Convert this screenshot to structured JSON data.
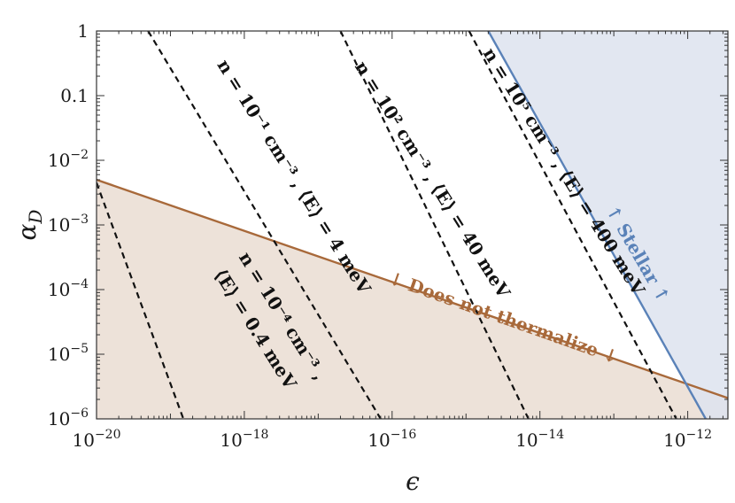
{
  "chart_data": {
    "type": "line",
    "xlabel": "ϵ",
    "ylabel": "α_D",
    "xscale": "log",
    "yscale": "log",
    "xlim": [
      1e-20,
      3.5e-12
    ],
    "ylim": [
      1e-06,
      1
    ],
    "grid": false,
    "x_ticks": [
      {
        "value": 1e-20,
        "label": "10⁻²⁰"
      },
      {
        "value": 1e-18,
        "label": "10⁻¹⁸"
      },
      {
        "value": 1e-16,
        "label": "10⁻¹⁶"
      },
      {
        "value": 1e-14,
        "label": "10⁻¹⁴"
      },
      {
        "value": 1e-12,
        "label": "10⁻¹²"
      }
    ],
    "y_ticks": [
      {
        "value": 1e-06,
        "label": "10⁻⁶"
      },
      {
        "value": 1e-05,
        "label": "10⁻⁵"
      },
      {
        "value": 0.0001,
        "label": "10⁻⁴"
      },
      {
        "value": 0.001,
        "label": "10⁻³"
      },
      {
        "value": 0.01,
        "label": "10⁻²"
      },
      {
        "value": 0.1,
        "label": "0.1"
      },
      {
        "value": 1,
        "label": "1"
      }
    ],
    "regions": [
      {
        "name": "thermalize",
        "label": "↓ Does not thermalize ↓",
        "color": "#a8693a",
        "fill": "#eaddd2",
        "boundary": [
          [
            1e-20,
            0.005
          ],
          [
            3.5e-12,
            2.1e-06
          ]
        ],
        "shade": "below"
      },
      {
        "name": "stellar",
        "label": "↑ Stellar ↑",
        "color": "#5a82b8",
        "fill": "#dde3ef",
        "boundary": [
          [
            2e-15,
            1
          ],
          [
            1.75e-12,
            1e-06
          ]
        ],
        "shade": "right"
      }
    ],
    "series": [
      {
        "name": "n = 10⁻⁴ cm⁻³ , ⟨E⟩ = 0.4 meV",
        "color": "#111111",
        "dash": true,
        "points": [
          [
            1e-20,
            0.0045
          ],
          [
            1.5e-19,
            1e-06
          ]
        ]
      },
      {
        "name": "n = 10⁻¹ cm⁻³ , ⟨E⟩ = 4 meV",
        "color": "#111111",
        "dash": true,
        "points": [
          [
            5e-20,
            1
          ],
          [
            7e-17,
            1e-06
          ]
        ]
      },
      {
        "name": "n = 10² cm⁻³ , ⟨E⟩ = 40 meV",
        "color": "#111111",
        "dash": true,
        "points": [
          [
            2e-17,
            1
          ],
          [
            7e-15,
            1e-06
          ]
        ]
      },
      {
        "name": "n = 10⁵ cm⁻³ , ⟨E⟩ = 400 meV",
        "color": "#111111",
        "dash": true,
        "points": [
          [
            1.1e-15,
            1
          ],
          [
            7e-13,
            1e-06
          ]
        ]
      }
    ],
    "annotations": [
      {
        "text": "n = 10⁻⁴ cm⁻³ ,",
        "color": "#111111",
        "x": 2.8e-18,
        "y": 3.5e-05,
        "angle": 58
      },
      {
        "text": "⟨E⟩ = 0.4 meV",
        "color": "#111111",
        "x": 1.2e-18,
        "y": 2.2e-05,
        "angle": 58
      },
      {
        "text": "n = 10⁻¹ cm⁻³ , ⟨E⟩ = 4 meV",
        "color": "#111111",
        "x": 4e-18,
        "y": 0.005,
        "angle": 58
      },
      {
        "text": "n = 10² cm⁻³ , ⟨E⟩ = 40 meV",
        "color": "#111111",
        "x": 3e-16,
        "y": 0.0045,
        "angle": 58
      },
      {
        "text": "n = 10⁵ cm⁻³ , ⟨E⟩ = 400 meV",
        "color": "#111111",
        "x": 1.8e-14,
        "y": 0.006,
        "angle": 58
      },
      {
        "text": "↓ Does not thermalize ↓",
        "color": "#a8693a",
        "x": 3e-15,
        "y": 3e-05,
        "angle": 19.5
      },
      {
        "text": "↑ Stellar ↑",
        "color": "#5a82b8",
        "x": 1.8e-13,
        "y": 0.00032,
        "angle": 60
      }
    ]
  }
}
